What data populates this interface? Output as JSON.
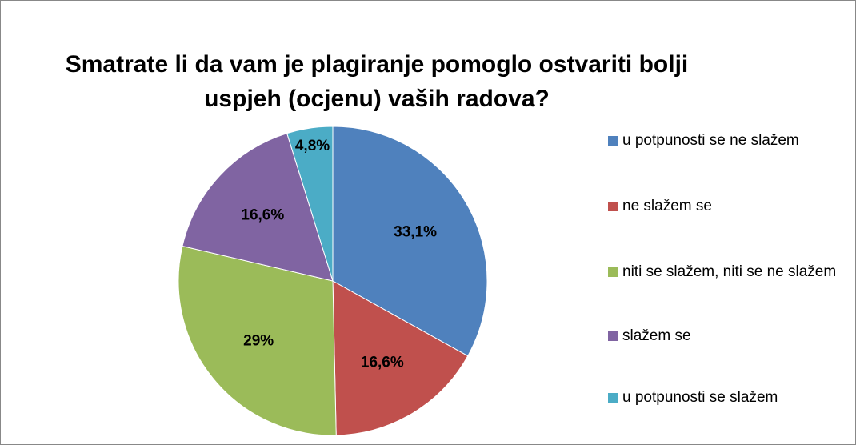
{
  "chart_data": {
    "type": "pie",
    "title": "Smatrate li da vam je plagiranje pomoglo ostvariti bolji uspjeh (ocjenu) vaših radova?",
    "categories": [
      "u potpunosti se ne slažem",
      "ne slažem se",
      "niti se slažem, niti se ne slažem",
      "slažem se",
      "u potpunosti se slažem"
    ],
    "values": [
      33.1,
      16.6,
      29,
      16.6,
      4.8
    ],
    "value_labels": [
      "33,1%",
      "16,6%",
      "29%",
      "16,6%",
      "4,8%"
    ],
    "colors": [
      "#4f81bd",
      "#c0504d",
      "#9bbb59",
      "#8064a2",
      "#4bacc6"
    ],
    "legend": "right"
  }
}
